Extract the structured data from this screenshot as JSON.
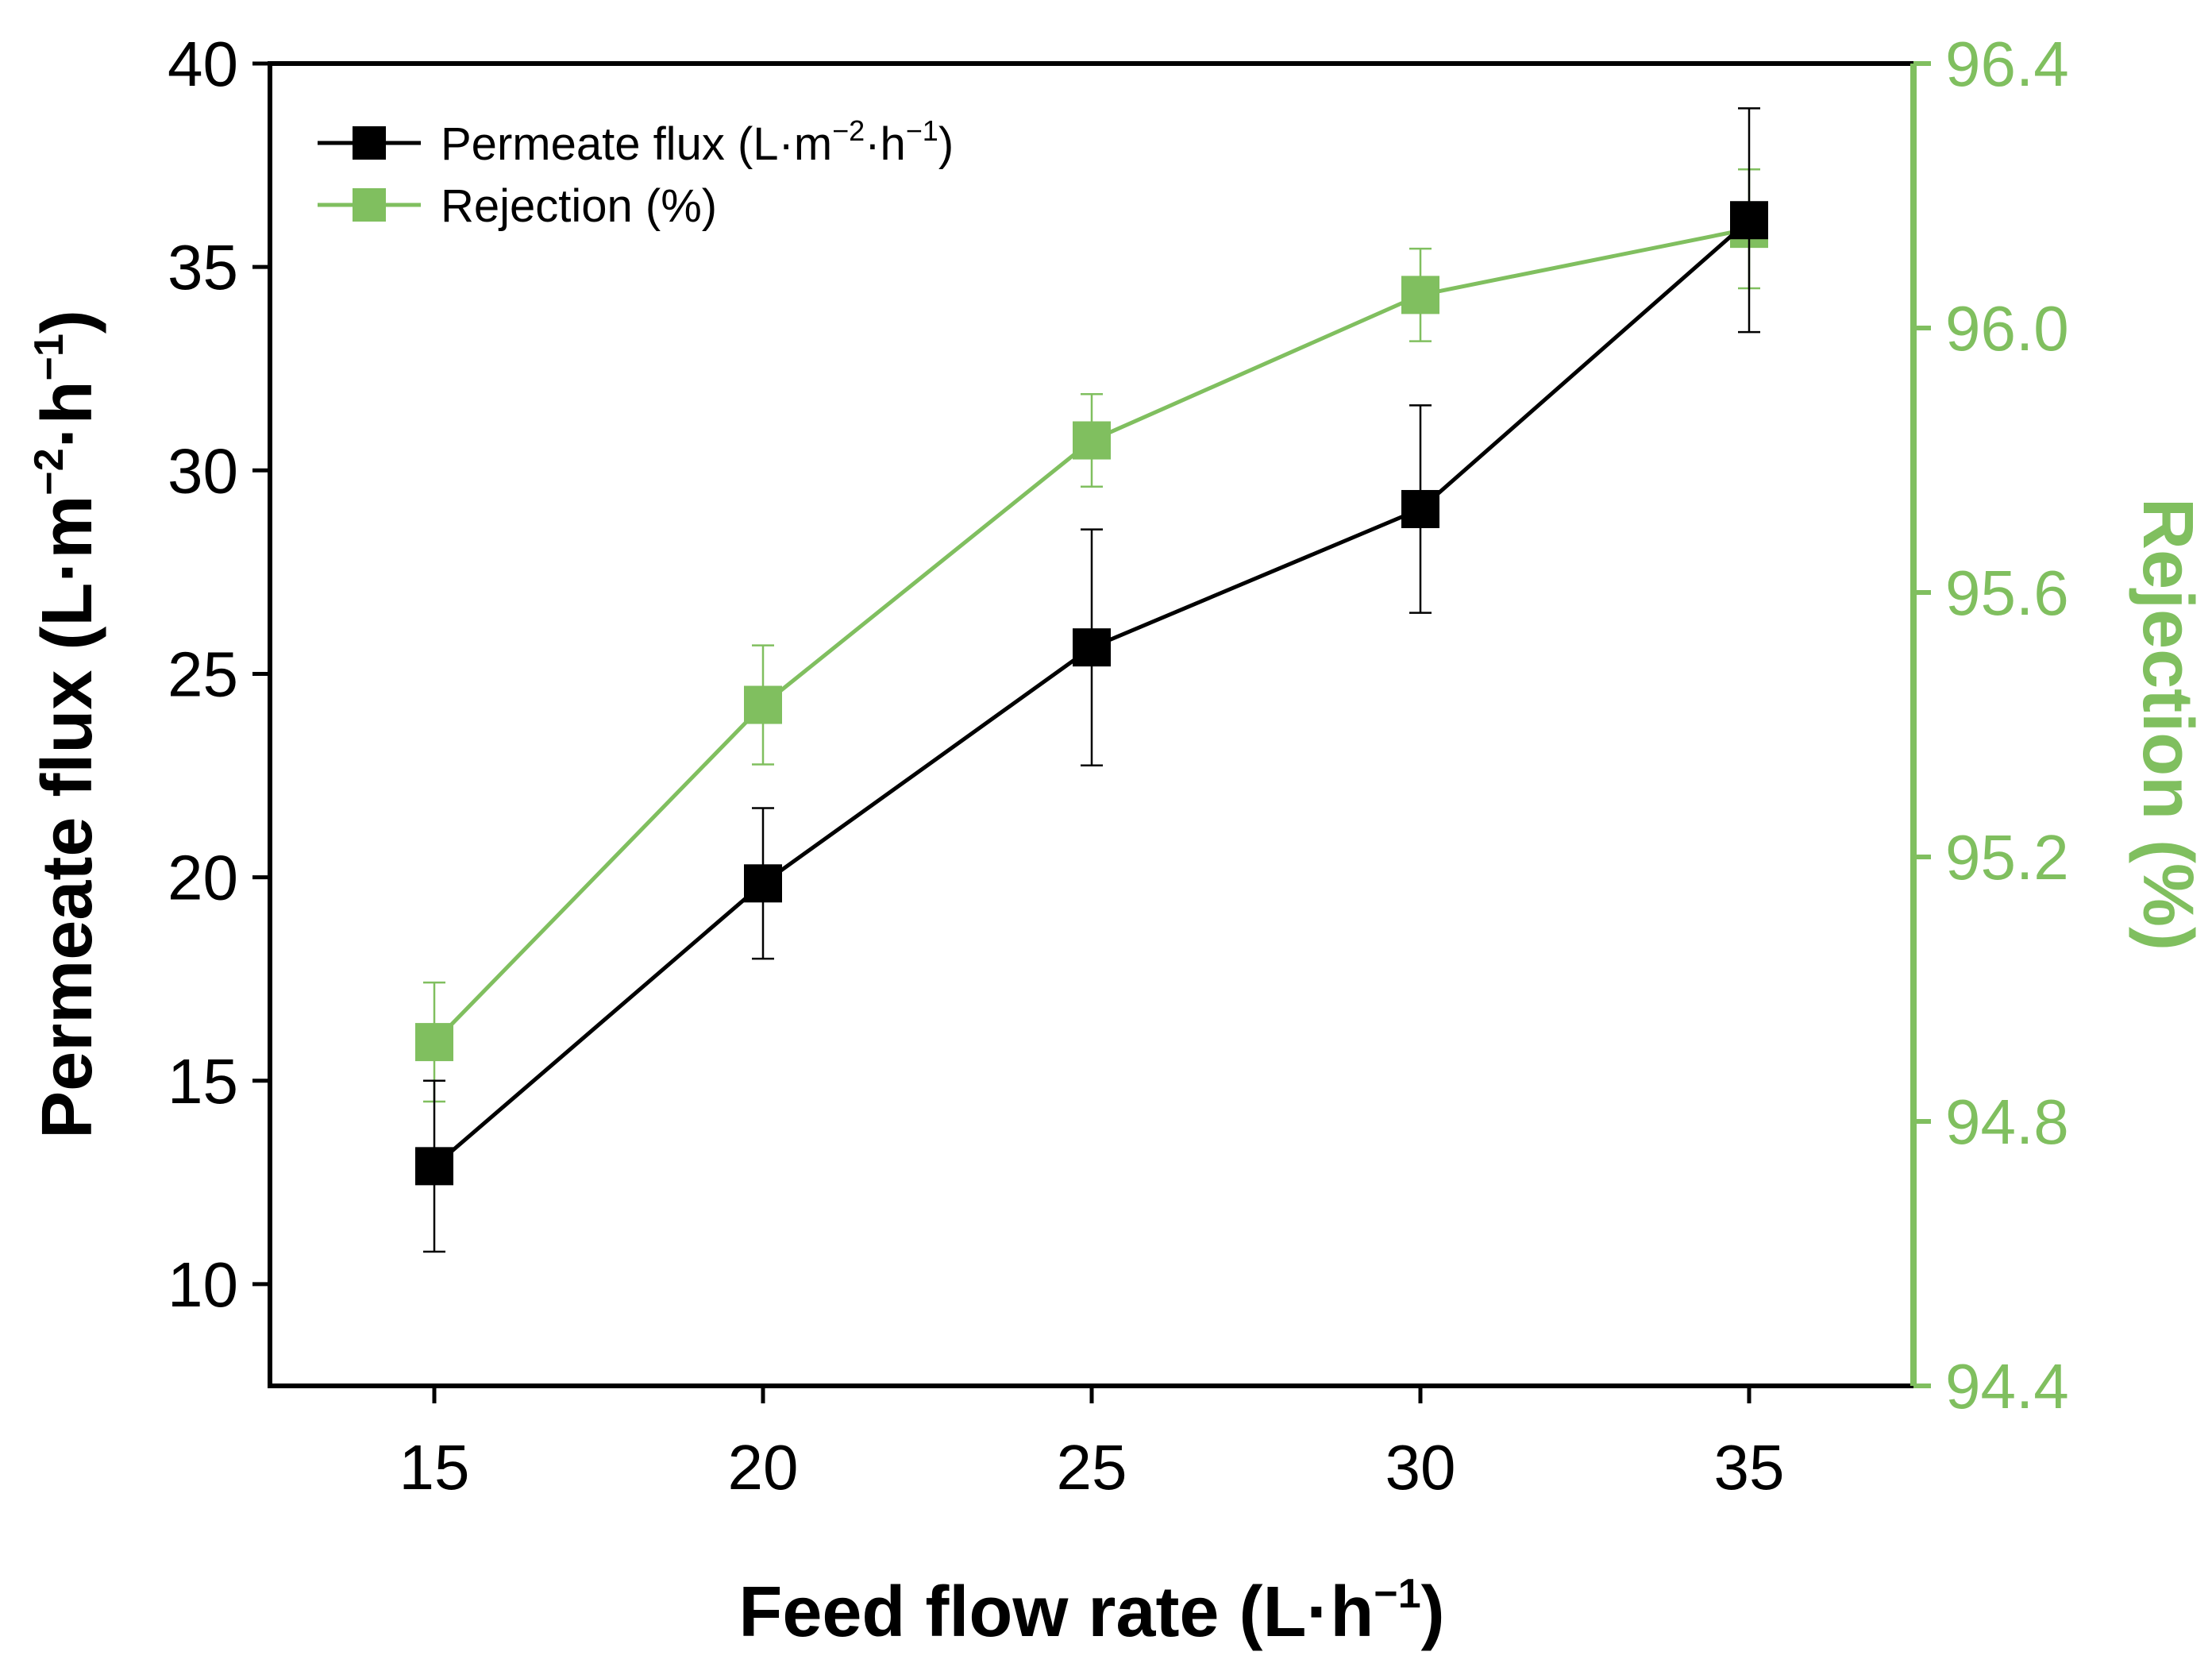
{
  "chart_data": {
    "type": "line",
    "title": "",
    "x": [
      15,
      20,
      25,
      30,
      35
    ],
    "xticks": [
      "15",
      "20",
      "25",
      "30",
      "35"
    ],
    "xlim": [
      12.5,
      37.5
    ],
    "xlabel": {
      "main": "Feed flow rate (L·h",
      "sup": "−1",
      "close": ")"
    },
    "y_left": {
      "label": {
        "main": "Permeate flux (L·m",
        "sup1": "−2",
        "mid": "·h",
        "sup2": "−1",
        "close": ")"
      },
      "ticks": [
        "10",
        "15",
        "20",
        "25",
        "30",
        "35",
        "40"
      ],
      "tick_values": [
        10,
        15,
        20,
        25,
        30,
        35,
        40
      ],
      "ylim": [
        7.5,
        40
      ]
    },
    "y_right": {
      "label": "Rejection (%)",
      "ticks": [
        "94.4",
        "94.8",
        "95.2",
        "95.6",
        "96.0",
        "96.4"
      ],
      "tick_values": [
        94.4,
        94.8,
        95.2,
        95.6,
        96.0,
        96.4
      ],
      "ylim": [
        94.4,
        96.4
      ]
    },
    "series": [
      {
        "name": "Permeate flux",
        "axis": "left",
        "color": "#000000",
        "values": [
          12.9,
          19.85,
          25.65,
          29.05,
          36.15
        ],
        "errors": [
          2.1,
          1.85,
          2.9,
          2.55,
          2.75
        ]
      },
      {
        "name": "Rejection",
        "axis": "right",
        "color": "#80bf5f",
        "values": [
          94.92,
          95.43,
          95.83,
          96.05,
          96.15
        ],
        "errors": [
          0.09,
          0.09,
          0.07,
          0.07,
          0.09
        ]
      }
    ],
    "legend": {
      "position": "top-left",
      "flux": {
        "main": "Permeate flux (L·m",
        "sup1": "−2",
        "mid": "·h",
        "sup2": "−1",
        "close": ")"
      },
      "rejection": "Rejection (%)"
    }
  },
  "colors": {
    "flux": "#000000",
    "rejection": "#80bf5f",
    "axis": "#000000"
  }
}
